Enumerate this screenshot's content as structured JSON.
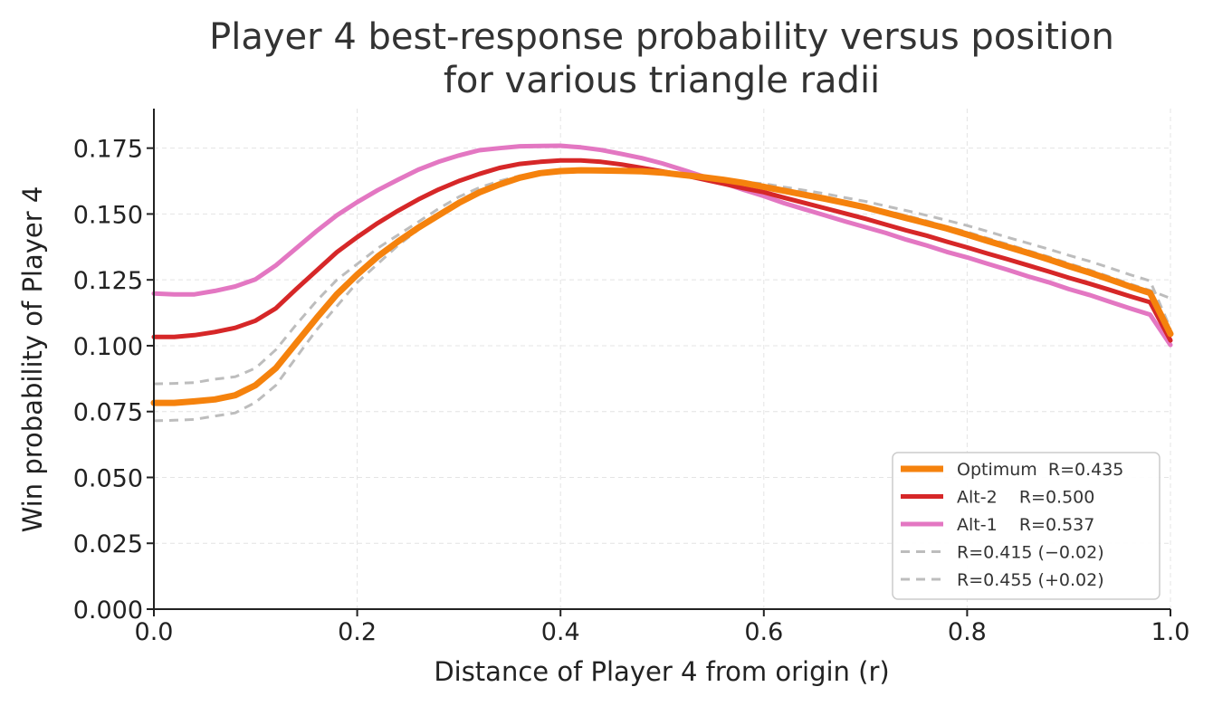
{
  "chart_data": {
    "type": "line",
    "title": "Player 4 best-response probability versus position\nfor various triangle radii",
    "xlabel": "Distance of Player 4 from origin  (r)",
    "ylabel": "Win probability of Player 4",
    "xlim": [
      0.0,
      1.0
    ],
    "ylim": [
      0.0,
      0.19
    ],
    "xticks": [
      "0.0",
      "0.2",
      "0.4",
      "0.6",
      "0.8",
      "1.0"
    ],
    "yticks": [
      "0.000",
      "0.025",
      "0.050",
      "0.075",
      "0.100",
      "0.125",
      "0.150",
      "0.175"
    ],
    "grid": true,
    "legend_position": "bottom-right",
    "x": [
      0.0,
      0.02,
      0.04,
      0.06,
      0.08,
      0.1,
      0.12,
      0.14,
      0.16,
      0.18,
      0.2,
      0.22,
      0.24,
      0.26,
      0.28,
      0.3,
      0.32,
      0.34,
      0.36,
      0.38,
      0.4,
      0.42,
      0.44,
      0.46,
      0.48,
      0.5,
      0.52,
      0.54,
      0.56,
      0.58,
      0.6,
      0.62,
      0.64,
      0.66,
      0.68,
      0.7,
      0.72,
      0.74,
      0.76,
      0.78,
      0.8,
      0.82,
      0.84,
      0.86,
      0.88,
      0.9,
      0.92,
      0.94,
      0.96,
      0.98,
      1.0
    ],
    "series": [
      {
        "name": "R=0.415 (−0.02)",
        "color": "#bdbdbd",
        "style": "dashed",
        "width": 3,
        "values": [
          0.0855,
          0.0857,
          0.086,
          0.0873,
          0.0882,
          0.0915,
          0.0985,
          0.108,
          0.117,
          0.125,
          0.131,
          0.137,
          0.142,
          0.147,
          0.152,
          0.1565,
          0.16,
          0.1625,
          0.1645,
          0.1655,
          0.1663,
          0.1668,
          0.167,
          0.1669,
          0.1665,
          0.1658,
          0.1648,
          0.1638,
          0.1627,
          0.1615,
          0.1605,
          0.1592,
          0.1578,
          0.1563,
          0.1547,
          0.1531,
          0.1512,
          0.1494,
          0.1474,
          0.1452,
          0.1432,
          0.1408,
          0.1385,
          0.1361,
          0.1338,
          0.1312,
          0.1288,
          0.1262,
          0.1235,
          0.121,
          0.118
        ]
      },
      {
        "name": "R=0.455 (+0.02)",
        "color": "#bdbdbd",
        "style": "dashed",
        "width": 3,
        "values": [
          0.0715,
          0.0717,
          0.072,
          0.0733,
          0.0745,
          0.0785,
          0.085,
          0.0955,
          0.106,
          0.115,
          0.124,
          0.131,
          0.138,
          0.144,
          0.149,
          0.155,
          0.159,
          0.1615,
          0.164,
          0.1655,
          0.1662,
          0.1667,
          0.1669,
          0.1668,
          0.1664,
          0.1657,
          0.1648,
          0.164,
          0.163,
          0.1621,
          0.1615,
          0.1602,
          0.159,
          0.1577,
          0.1562,
          0.1548,
          0.153,
          0.1513,
          0.1495,
          0.1476,
          0.1456,
          0.1434,
          0.1411,
          0.1389,
          0.1367,
          0.1343,
          0.1321,
          0.1296,
          0.127,
          0.1246,
          0.1065
        ]
      },
      {
        "name": "Alt-1    R=0.537",
        "color": "#e377c2",
        "style": "solid",
        "width": 5,
        "values": [
          0.1198,
          0.1195,
          0.1195,
          0.1208,
          0.1225,
          0.1252,
          0.1305,
          0.137,
          0.1435,
          0.1495,
          0.1545,
          0.159,
          0.163,
          0.1668,
          0.1698,
          0.1722,
          0.1742,
          0.175,
          0.1757,
          0.1758,
          0.1759,
          0.1753,
          0.1743,
          0.1728,
          0.1712,
          0.1692,
          0.1668,
          0.1643,
          0.1618,
          0.1592,
          0.1568,
          0.1541,
          0.1518,
          0.1495,
          0.1472,
          0.145,
          0.1428,
          0.1403,
          0.1381,
          0.1356,
          0.1335,
          0.1311,
          0.1288,
          0.1263,
          0.1241,
          0.1215,
          0.1193,
          0.1167,
          0.1142,
          0.1118,
          0.1003
        ]
      },
      {
        "name": "Alt-2    R=0.500",
        "color": "#d62728",
        "style": "solid",
        "width": 5,
        "values": [
          0.1033,
          0.1033,
          0.104,
          0.1052,
          0.1068,
          0.1095,
          0.1142,
          0.1215,
          0.1285,
          0.1355,
          0.1412,
          0.1465,
          0.1512,
          0.1555,
          0.1593,
          0.1625,
          0.1652,
          0.1675,
          0.169,
          0.1698,
          0.1703,
          0.1703,
          0.1698,
          0.1688,
          0.1675,
          0.1662,
          0.1648,
          0.1632,
          0.1615,
          0.1598,
          0.1583,
          0.1562,
          0.1542,
          0.1522,
          0.1502,
          0.1482,
          0.146,
          0.1438,
          0.1418,
          0.1395,
          0.1373,
          0.135,
          0.1328,
          0.1305,
          0.1282,
          0.1258,
          0.1236,
          0.1212,
          0.1188,
          0.1165,
          0.102
        ]
      },
      {
        "name": "Optimum  R=0.435",
        "color": "#f5820d",
        "style": "solid",
        "width": 7,
        "values": [
          0.0783,
          0.0783,
          0.0789,
          0.0796,
          0.0812,
          0.085,
          0.0915,
          0.101,
          0.1105,
          0.1195,
          0.127,
          0.1338,
          0.1395,
          0.1448,
          0.1495,
          0.1542,
          0.1582,
          0.1612,
          0.1638,
          0.1655,
          0.1663,
          0.1666,
          0.1665,
          0.1664,
          0.1662,
          0.1657,
          0.1648,
          0.164,
          0.163,
          0.1618,
          0.1603,
          0.1588,
          0.1573,
          0.1558,
          0.1542,
          0.1525,
          0.1505,
          0.1485,
          0.1465,
          0.1445,
          0.1422,
          0.1398,
          0.1375,
          0.1352,
          0.1328,
          0.1302,
          0.1278,
          0.1252,
          0.1225,
          0.12,
          0.1045
        ]
      }
    ],
    "legend_order": [
      "Optimum  R=0.435",
      "Alt-2    R=0.500",
      "Alt-1    R=0.537",
      "R=0.415 (−0.02)",
      "R=0.455 (+0.02)"
    ]
  }
}
